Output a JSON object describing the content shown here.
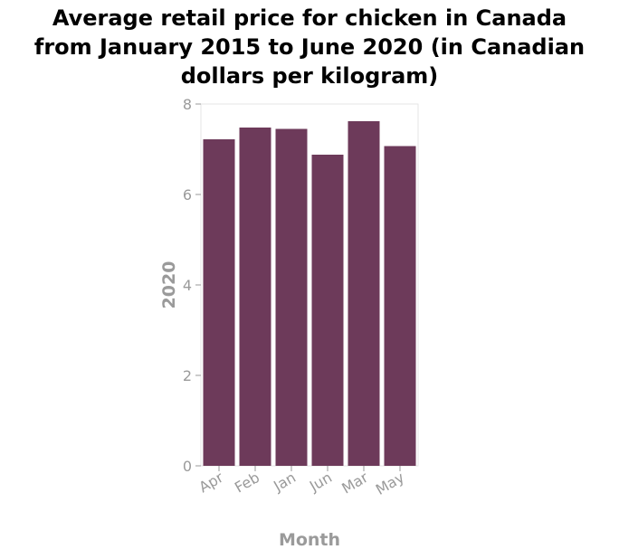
{
  "chart_data": {
    "type": "bar",
    "title_lines": [
      "Average retail price for chicken in Canada",
      "from January 2015 to June 2020 (in Canadian",
      "dollars per kilogram)"
    ],
    "categories": [
      "Apr",
      "Feb",
      "Jan",
      "Jun",
      "Mar",
      "May"
    ],
    "values": [
      7.22,
      7.48,
      7.45,
      6.88,
      7.62,
      7.07
    ],
    "xlabel": "Month",
    "ylabel": "2020",
    "ylim": [
      0,
      8
    ],
    "yticks": [
      "0",
      "2",
      "4",
      "6",
      "8"
    ],
    "bar_color": "#6d3a5a",
    "grid": false
  }
}
